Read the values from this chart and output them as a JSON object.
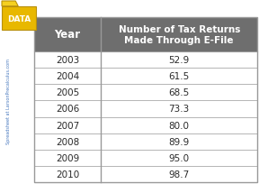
{
  "years": [
    "2003",
    "2004",
    "2005",
    "2006",
    "2007",
    "2008",
    "2009",
    "2010"
  ],
  "values": [
    "52.9",
    "61.5",
    "68.5",
    "73.3",
    "80.0",
    "89.9",
    "95.0",
    "98.7"
  ],
  "col1_header": "Year",
  "col2_header": "Number of Tax Returns\nMade Through E-File",
  "header_bg": "#6e6e6e",
  "header_text_color": "#ffffff",
  "body_bg": "#ffffff",
  "body_text_color": "#2a2a2a",
  "border_color": "#999999",
  "data_label_text": "DATA",
  "folder_body_color": "#e8b800",
  "folder_tab_color": "#f5d020",
  "folder_edge_color": "#b8900a",
  "side_text": "Spreadsheet at LarsonPrecalculus.com",
  "side_text_color": "#4a7abf",
  "fig_width": 2.88,
  "fig_height": 2.05,
  "dpi": 100
}
